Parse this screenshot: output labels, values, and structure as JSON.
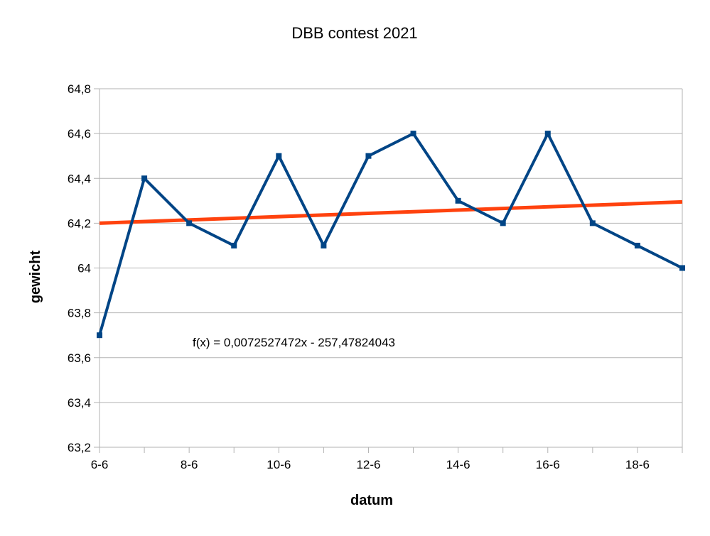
{
  "chart_data": {
    "type": "line",
    "title": "DBB contest 2021",
    "xlabel": "datum",
    "ylabel": "gewicht",
    "x": [
      "6-6",
      "7-6",
      "8-6",
      "9-6",
      "10-6",
      "11-6",
      "12-6",
      "13-6",
      "14-6",
      "15-6",
      "16-6",
      "17-6",
      "18-6",
      "19-6"
    ],
    "x_tick_labels": [
      "6-6",
      "8-6",
      "10-6",
      "12-6",
      "14-6",
      "16-6",
      "18-6"
    ],
    "y_tick_labels": [
      "63,2",
      "63,4",
      "63,6",
      "63,8",
      "64",
      "64,2",
      "64,4",
      "64,6",
      "64,8"
    ],
    "ylim": [
      63.2,
      64.8
    ],
    "grid": "horizontal",
    "series": [
      {
        "values": [
          63.7,
          64.4,
          64.2,
          64.1,
          64.5,
          64.1,
          64.5,
          64.6,
          64.3,
          64.2,
          64.6,
          64.2,
          64.1,
          64.0
        ],
        "color": "#004586",
        "marker": "square"
      }
    ],
    "trendline": {
      "type": "linear",
      "color": "#ff420e",
      "start_value": 64.2,
      "end_value": 64.295,
      "equation": "f(x) = 0,0072527472x - 257,47824043"
    }
  }
}
